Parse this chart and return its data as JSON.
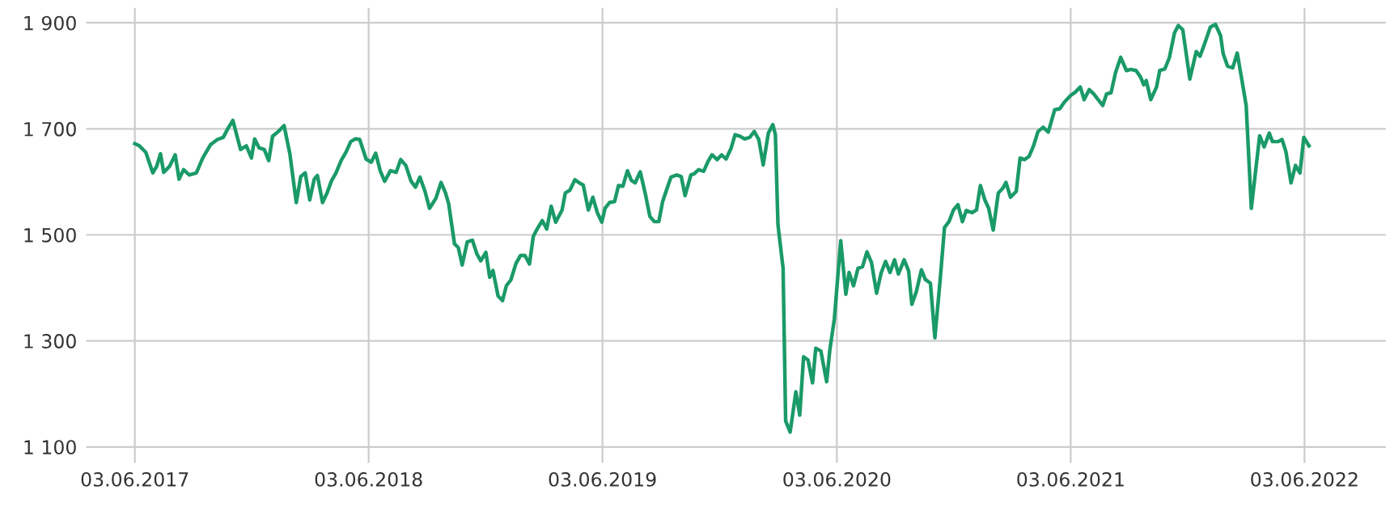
{
  "chart_data": {
    "type": "line",
    "x": [
      "2017-06-03",
      "2017-06-10",
      "2017-06-20",
      "2017-07-01",
      "2017-07-07",
      "2017-07-13",
      "2017-07-18",
      "2017-07-27",
      "2017-08-05",
      "2017-08-11",
      "2017-08-18",
      "2017-08-27",
      "2017-09-07",
      "2017-09-17",
      "2017-09-29",
      "2017-10-10",
      "2017-10-19",
      "2017-10-26",
      "2017-11-03",
      "2017-11-15",
      "2017-11-24",
      "2017-12-02",
      "2017-12-07",
      "2017-12-14",
      "2017-12-22",
      "2017-12-29",
      "2018-01-04",
      "2018-01-13",
      "2018-01-22",
      "2018-01-31",
      "2018-02-10",
      "2018-02-17",
      "2018-02-24",
      "2018-03-03",
      "2018-03-10",
      "2018-03-15",
      "2018-03-23",
      "2018-03-30",
      "2018-04-06",
      "2018-04-13",
      "2018-04-21",
      "2018-04-29",
      "2018-05-06",
      "2018-05-13",
      "2018-05-20",
      "2018-05-30",
      "2018-06-07",
      "2018-06-14",
      "2018-06-21",
      "2018-06-28",
      "2018-07-07",
      "2018-07-16",
      "2018-07-23",
      "2018-07-31",
      "2018-08-08",
      "2018-08-15",
      "2018-08-22",
      "2018-08-30",
      "2018-09-06",
      "2018-09-16",
      "2018-09-24",
      "2018-10-01",
      "2018-10-06",
      "2018-10-15",
      "2018-10-21",
      "2018-10-27",
      "2018-11-04",
      "2018-11-12",
      "2018-11-19",
      "2018-11-25",
      "2018-12-03",
      "2018-12-09",
      "2018-12-14",
      "2018-12-22",
      "2018-12-29",
      "2019-01-04",
      "2019-01-11",
      "2019-01-19",
      "2019-01-26",
      "2019-02-02",
      "2019-02-09",
      "2019-02-15",
      "2019-02-21",
      "2019-03-01",
      "2019-03-08",
      "2019-03-15",
      "2019-03-22",
      "2019-04-01",
      "2019-04-06",
      "2019-04-13",
      "2019-04-21",
      "2019-04-28",
      "2019-05-04",
      "2019-05-12",
      "2019-05-19",
      "2019-05-26",
      "2019-06-02",
      "2019-06-07",
      "2019-06-14",
      "2019-06-22",
      "2019-06-28",
      "2019-07-05",
      "2019-07-12",
      "2019-07-18",
      "2019-07-24",
      "2019-08-01",
      "2019-08-09",
      "2019-08-16",
      "2019-08-23",
      "2019-08-30",
      "2019-09-05",
      "2019-09-12",
      "2019-09-18",
      "2019-09-27",
      "2019-10-04",
      "2019-10-10",
      "2019-10-19",
      "2019-10-24",
      "2019-10-31",
      "2019-11-08",
      "2019-11-15",
      "2019-11-21",
      "2019-11-29",
      "2019-12-06",
      "2019-12-13",
      "2019-12-21",
      "2019-12-27",
      "2020-01-04",
      "2020-01-11",
      "2020-01-19",
      "2020-01-26",
      "2020-02-02",
      "2020-02-09",
      "2020-02-17",
      "2020-02-24",
      "2020-02-28",
      "2020-03-03",
      "2020-03-11",
      "2020-03-15",
      "2020-03-22",
      "2020-03-31",
      "2020-04-06",
      "2020-04-12",
      "2020-04-19",
      "2020-04-26",
      "2020-05-01",
      "2020-05-09",
      "2020-05-18",
      "2020-05-23",
      "2020-05-30",
      "2020-06-09",
      "2020-06-17",
      "2020-06-22",
      "2020-06-29",
      "2020-07-06",
      "2020-07-13",
      "2020-07-20",
      "2020-07-27",
      "2020-08-04",
      "2020-08-11",
      "2020-08-18",
      "2020-08-25",
      "2020-09-01",
      "2020-09-07",
      "2020-09-16",
      "2020-09-23",
      "2020-09-28",
      "2020-10-05",
      "2020-10-13",
      "2020-10-19",
      "2020-10-27",
      "2020-11-03",
      "2020-11-11",
      "2020-11-18",
      "2020-11-25",
      "2020-12-02",
      "2020-12-09",
      "2020-12-16",
      "2020-12-22",
      "2020-12-31",
      "2021-01-07",
      "2021-01-13",
      "2021-01-20",
      "2021-01-26",
      "2021-02-02",
      "2021-02-10",
      "2021-02-17",
      "2021-02-22",
      "2021-03-01",
      "2021-03-10",
      "2021-03-16",
      "2021-03-23",
      "2021-03-30",
      "2021-04-06",
      "2021-04-13",
      "2021-04-21",
      "2021-04-29",
      "2021-05-09",
      "2021-05-17",
      "2021-05-24",
      "2021-06-03",
      "2021-06-10",
      "2021-06-18",
      "2021-06-24",
      "2021-07-02",
      "2021-07-09",
      "2021-07-16",
      "2021-07-23",
      "2021-07-29",
      "2021-08-05",
      "2021-08-12",
      "2021-08-20",
      "2021-08-29",
      "2021-09-05",
      "2021-09-13",
      "2021-09-20",
      "2021-09-25",
      "2021-09-29",
      "2021-10-06",
      "2021-10-15",
      "2021-10-20",
      "2021-10-28",
      "2021-11-04",
      "2021-11-12",
      "2021-11-18",
      "2021-11-25",
      "2021-12-06",
      "2021-12-16",
      "2021-12-22",
      "2021-12-31",
      "2022-01-07",
      "2022-01-15",
      "2022-01-23",
      "2022-01-27",
      "2022-02-03",
      "2022-02-11",
      "2022-02-18",
      "2022-02-25",
      "2022-03-04",
      "2022-03-12",
      "2022-03-25",
      "2022-04-01",
      "2022-04-09",
      "2022-04-14",
      "2022-04-23",
      "2022-04-29",
      "2022-05-05",
      "2022-05-13",
      "2022-05-20",
      "2022-05-27",
      "2022-06-02",
      "2022-06-10"
    ],
    "series": [
      {
        "color": "#1a9a68",
        "values": [
          1672,
          1668,
          1656,
          1617,
          1629,
          1653,
          1618,
          1629,
          1651,
          1605,
          1623,
          1613,
          1617,
          1645,
          1670,
          1680,
          1684,
          1700,
          1716,
          1661,
          1668,
          1645,
          1681,
          1664,
          1661,
          1640,
          1686,
          1695,
          1706,
          1653,
          1561,
          1610,
          1617,
          1566,
          1605,
          1612,
          1561,
          1579,
          1602,
          1617,
          1640,
          1657,
          1676,
          1681,
          1680,
          1643,
          1637,
          1654,
          1621,
          1601,
          1621,
          1618,
          1642,
          1631,
          1602,
          1590,
          1609,
          1582,
          1550,
          1569,
          1599,
          1579,
          1558,
          1483,
          1476,
          1443,
          1487,
          1490,
          1464,
          1451,
          1467,
          1420,
          1433,
          1385,
          1376,
          1404,
          1415,
          1446,
          1461,
          1461,
          1445,
          1497,
          1511,
          1527,
          1511,
          1554,
          1524,
          1547,
          1579,
          1584,
          1604,
          1598,
          1594,
          1547,
          1571,
          1542,
          1524,
          1550,
          1561,
          1563,
          1593,
          1592,
          1621,
          1603,
          1598,
          1619,
          1577,
          1535,
          1525,
          1525,
          1563,
          1588,
          1609,
          1613,
          1610,
          1574,
          1613,
          1615,
          1623,
          1620,
          1639,
          1651,
          1642,
          1651,
          1643,
          1664,
          1689,
          1686,
          1681,
          1684,
          1695,
          1680,
          1632,
          1692,
          1708,
          1689,
          1519,
          1437,
          1149,
          1128,
          1204,
          1160,
          1270,
          1264,
          1221,
          1286,
          1281,
          1223,
          1283,
          1341,
          1489,
          1388,
          1429,
          1404,
          1437,
          1440,
          1468,
          1448,
          1390,
          1428,
          1450,
          1429,
          1453,
          1426,
          1453,
          1432,
          1369,
          1393,
          1434,
          1416,
          1409,
          1306,
          1412,
          1514,
          1525,
          1547,
          1557,
          1525,
          1546,
          1542,
          1547,
          1593,
          1566,
          1550,
          1509,
          1579,
          1588,
          1599,
          1571,
          1582,
          1645,
          1642,
          1648,
          1668,
          1695,
          1703,
          1694,
          1736,
          1738,
          1750,
          1763,
          1769,
          1779,
          1755,
          1774,
          1766,
          1755,
          1744,
          1766,
          1768,
          1806,
          1835,
          1810,
          1812,
          1810,
          1798,
          1783,
          1791,
          1755,
          1779,
          1810,
          1813,
          1834,
          1881,
          1895,
          1887,
          1794,
          1846,
          1837,
          1867,
          1892,
          1897,
          1876,
          1842,
          1818,
          1815,
          1843,
          1794,
          1744,
          1550,
          1687,
          1666,
          1692,
          1676,
          1676,
          1680,
          1657,
          1598,
          1631,
          1617,
          1684,
          1668
        ]
      }
    ],
    "xlim": [
      "2017-03-19",
      "2022-10-08"
    ],
    "xticks": [
      {
        "value": "2017-06-03",
        "label": "03.06.2017"
      },
      {
        "value": "2018-06-03",
        "label": "03.06.2018"
      },
      {
        "value": "2019-06-03",
        "label": "03.06.2019"
      },
      {
        "value": "2020-06-03",
        "label": "03.06.2020"
      },
      {
        "value": "2021-06-03",
        "label": "03.06.2021"
      },
      {
        "value": "2022-06-03",
        "label": "03.06.2022"
      }
    ],
    "ylim": [
      1070,
      1928
    ],
    "yticks": [
      {
        "value": 1100,
        "label": "1 100"
      },
      {
        "value": 1300,
        "label": "1 300"
      },
      {
        "value": 1500,
        "label": "1 500"
      },
      {
        "value": 1700,
        "label": "1 700"
      },
      {
        "value": 1900,
        "label": "1 900"
      }
    ],
    "grid": true,
    "marker": "none",
    "line_style": "solid"
  }
}
